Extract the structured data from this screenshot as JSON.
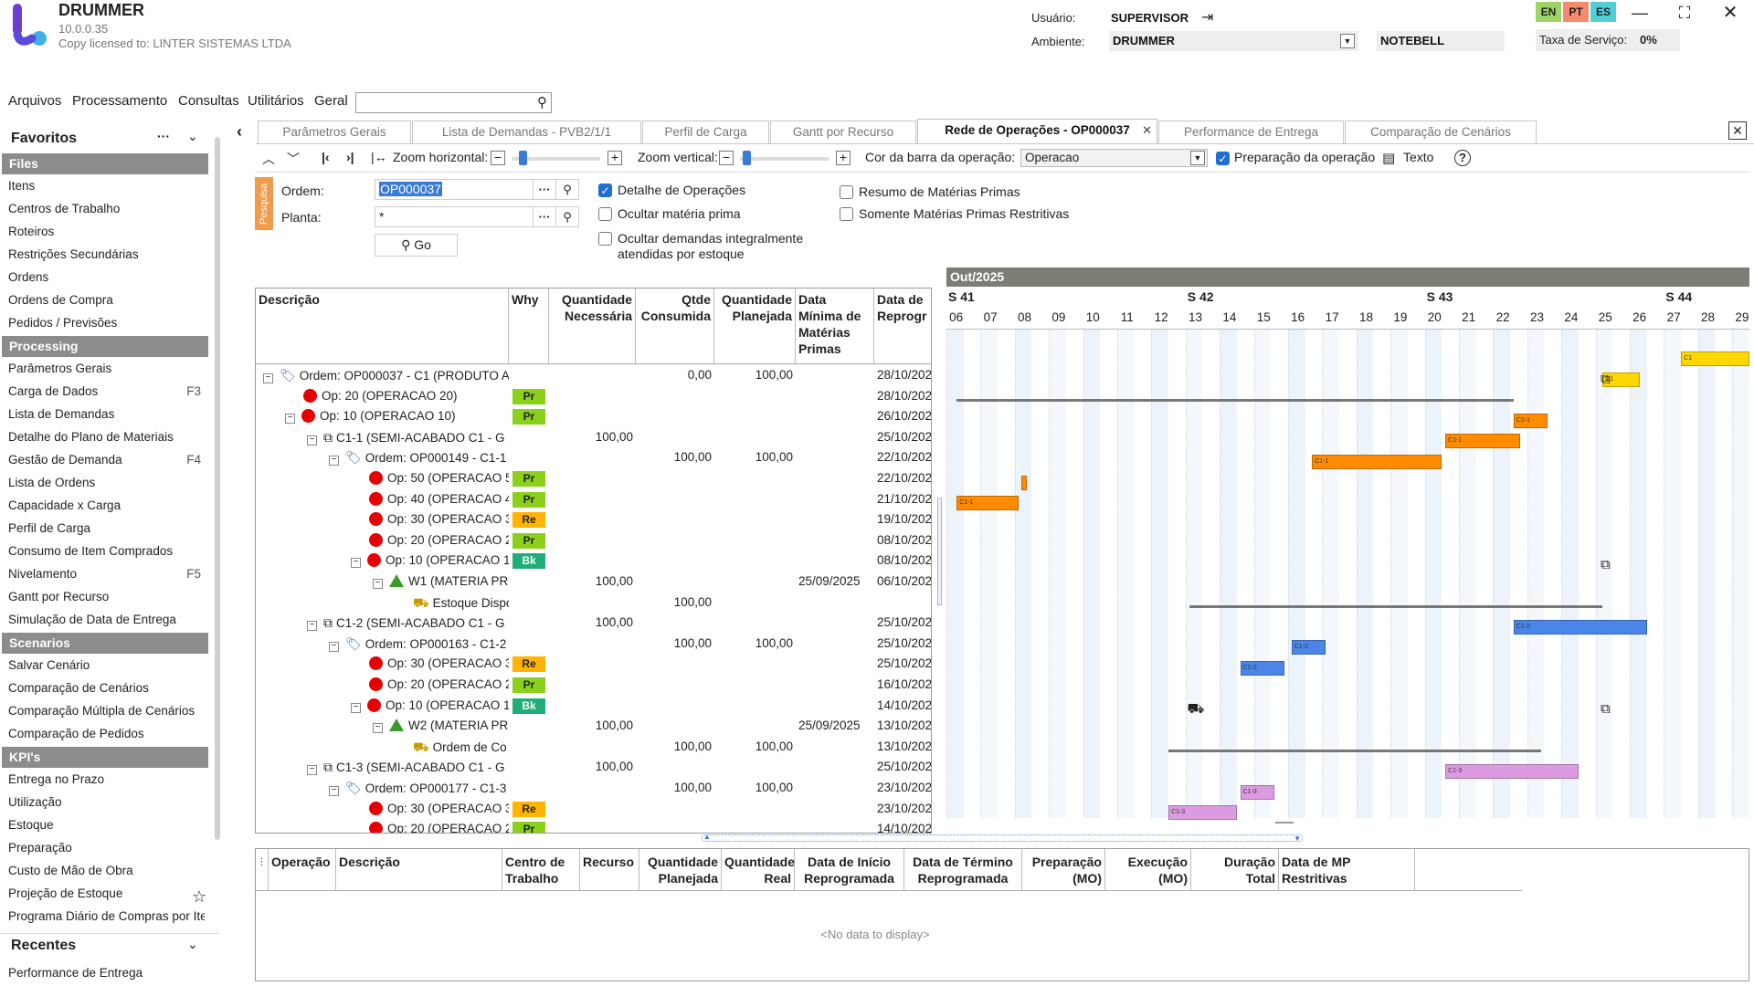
{
  "app": {
    "name": "DRUMMER",
    "version": "10.0.0.35",
    "license": "Copy licensed to: LINTER SISTEMAS LTDA"
  },
  "header": {
    "user_label": "Usuário:",
    "user_value": "SUPERVISOR",
    "env_label": "Ambiente:",
    "env_value": "DRUMMER",
    "env_secondary": "NOTEBELL",
    "service_rate_label": "Taxa de Serviço:",
    "service_rate_value": "0%",
    "languages": [
      "EN",
      "PT",
      "ES"
    ],
    "lang_colors": [
      "#9ed36a",
      "#f48a6e",
      "#4fd0d6"
    ]
  },
  "menu": [
    "Arquivos",
    "Processamento",
    "Consultas",
    "Utilitários",
    "Geral"
  ],
  "sidebar": {
    "title": "Favoritos",
    "sections": [
      {
        "title": "Files",
        "items": [
          {
            "label": "Itens"
          },
          {
            "label": "Centros de Trabalho"
          },
          {
            "label": "Roteiros"
          },
          {
            "label": "Restrições Secundárias"
          },
          {
            "label": "Ordens"
          },
          {
            "label": "Ordens de Compra"
          },
          {
            "label": "Pedidos / Previsões"
          }
        ]
      },
      {
        "title": "Processing",
        "items": [
          {
            "label": "Parâmetros Gerais"
          },
          {
            "label": "Carga de Dados",
            "key": "F3"
          },
          {
            "label": "Lista de Demandas"
          },
          {
            "label": "Detalhe do Plano de Materiais"
          },
          {
            "label": "Gestão de Demanda",
            "key": "F4"
          },
          {
            "label": "Lista de Ordens"
          },
          {
            "label": "Capacidade x Carga"
          },
          {
            "label": "Perfil de Carga"
          },
          {
            "label": "Consumo de Item Comprados"
          },
          {
            "label": "Nivelamento",
            "key": "F5"
          },
          {
            "label": "Gantt por Recurso"
          },
          {
            "label": "Simulação de Data de Entrega"
          }
        ]
      },
      {
        "title": "Scenarios",
        "items": [
          {
            "label": "Salvar Cenário"
          },
          {
            "label": "Comparação de Cenários"
          },
          {
            "label": "Comparação Múltipla de Cenários"
          },
          {
            "label": "Comparação de Pedidos"
          }
        ]
      },
      {
        "title": "KPI's",
        "items": [
          {
            "label": "Entrega no Prazo"
          },
          {
            "label": "Utilização"
          },
          {
            "label": "Estoque"
          },
          {
            "label": "Preparação"
          },
          {
            "label": "Custo de Mão de Obra"
          },
          {
            "label": "Projeção de Estoque"
          },
          {
            "label": "Programa Diário de Compras por Iter"
          }
        ]
      }
    ],
    "recent_title": "Recentes",
    "recent_items": [
      "Performance de Entrega"
    ]
  },
  "tabs": [
    {
      "label": "Parâmetros Gerais"
    },
    {
      "label": "Lista de Demandas - PVB2/1/1"
    },
    {
      "label": "Perfil de Carga"
    },
    {
      "label": "Gantt por Recurso"
    },
    {
      "label": "Rede de Operações - OP000037",
      "active": true
    },
    {
      "label": "Performance de Entrega"
    },
    {
      "label": "Comparação de Cenários"
    }
  ],
  "toolbar": {
    "zoom_h": "Zoom horizontal:",
    "zoom_v": "Zoom vertical:",
    "bar_color_label": "Cor da barra da operação:",
    "bar_color_value": "Operacao",
    "prep_label": "Preparação da operação",
    "text_label": "Texto"
  },
  "form": {
    "side_label": "Pesquisa",
    "order_label": "Ordem:",
    "order_value": "OP000037",
    "plant_label": "Planta:",
    "plant_value": "*",
    "go_label": "Go",
    "chk_detail": "Detalhe de Operações",
    "chk_hide_mp": "Ocultar matéria prima",
    "chk_hide_demands": "Ocultar demandas integralmente atendidas por estoque",
    "chk_summary": "Resumo de Matérias Primas",
    "chk_restrictive": "Somente Matérias Primas Restritivas"
  },
  "grid": {
    "headers": [
      "Descrição",
      "Why",
      "Quantidade Necessária",
      "Qtde Consumida",
      "Quantidade Planejada",
      "Data Mínima de Matérias Primas",
      "Data de Reprogr"
    ],
    "rows": [
      {
        "lvl": 0,
        "tog": "⊟",
        "ic": "order",
        "desc": "Ordem: OP000037 - C1 (PRODUTO A",
        "why": "",
        "qn": "",
        "qc": "0,00",
        "qp": "100,00",
        "dm": "",
        "dr": "28/10/202"
      },
      {
        "lvl": 1,
        "tog": "",
        "ic": "dot",
        "desc": "Op: 20 (OPERACAO 20)",
        "why": "Pr",
        "qn": "",
        "qc": "",
        "qp": "",
        "dm": "",
        "dr": "28/10/202"
      },
      {
        "lvl": 1,
        "tog": "⊟",
        "ic": "dot",
        "desc": "Op: 10 (OPERACAO 10)",
        "why": "Pr",
        "qn": "",
        "qc": "",
        "qp": "",
        "dm": "",
        "dr": "26/10/202"
      },
      {
        "lvl": 2,
        "tog": "⊟",
        "ic": "net",
        "desc": "C1-1 (SEMI-ACABADO C1 - G",
        "why": "",
        "qn": "100,00",
        "qc": "",
        "qp": "",
        "dm": "",
        "dr": "25/10/202"
      },
      {
        "lvl": 3,
        "tog": "⊟",
        "ic": "order",
        "desc": "Ordem: OP000149 - C1-1",
        "why": "",
        "qn": "",
        "qc": "100,00",
        "qp": "100,00",
        "dm": "",
        "dr": "22/10/202"
      },
      {
        "lvl": 4,
        "tog": "",
        "ic": "dot",
        "desc": "Op: 50 (OPERACAO 5",
        "why": "Pr",
        "qn": "",
        "qc": "",
        "qp": "",
        "dm": "",
        "dr": "22/10/202"
      },
      {
        "lvl": 4,
        "tog": "",
        "ic": "dot",
        "desc": "Op: 40 (OPERACAO 4",
        "why": "Pr",
        "qn": "",
        "qc": "",
        "qp": "",
        "dm": "",
        "dr": "21/10/202"
      },
      {
        "lvl": 4,
        "tog": "",
        "ic": "dot",
        "desc": "Op: 30 (OPERACAO 3",
        "why": "Re",
        "qn": "",
        "qc": "",
        "qp": "",
        "dm": "",
        "dr": "19/10/202"
      },
      {
        "lvl": 4,
        "tog": "",
        "ic": "dot",
        "desc": "Op: 20 (OPERACAO 2",
        "why": "Pr",
        "qn": "",
        "qc": "",
        "qp": "",
        "dm": "",
        "dr": "08/10/202"
      },
      {
        "lvl": 4,
        "tog": "⊟",
        "ic": "dot",
        "desc": "Op: 10 (OPERACAO 1",
        "why": "Bk",
        "qn": "",
        "qc": "",
        "qp": "",
        "dm": "",
        "dr": "08/10/202"
      },
      {
        "lvl": 5,
        "tog": "⊟",
        "ic": "tri",
        "desc": "W1 (MATERIA PR",
        "why": "",
        "qn": "100,00",
        "qc": "",
        "qp": "",
        "dm": "25/09/2025",
        "dr": "06/10/202"
      },
      {
        "lvl": 6,
        "tog": "",
        "ic": "truck",
        "desc": "Estoque Dispo",
        "why": "",
        "qn": "",
        "qc": "100,00",
        "qp": "",
        "dm": "",
        "dr": ""
      },
      {
        "lvl": 2,
        "tog": "⊟",
        "ic": "net",
        "desc": "C1-2 (SEMI-ACABADO C1 - G",
        "why": "",
        "qn": "100,00",
        "qc": "",
        "qp": "",
        "dm": "",
        "dr": "25/10/202"
      },
      {
        "lvl": 3,
        "tog": "⊟",
        "ic": "order",
        "desc": "Ordem: OP000163 - C1-2",
        "why": "",
        "qn": "",
        "qc": "100,00",
        "qp": "100,00",
        "dm": "",
        "dr": "25/10/202"
      },
      {
        "lvl": 4,
        "tog": "",
        "ic": "dot",
        "desc": "Op: 30 (OPERACAO 3",
        "why": "Re",
        "qn": "",
        "qc": "",
        "qp": "",
        "dm": "",
        "dr": "25/10/202"
      },
      {
        "lvl": 4,
        "tog": "",
        "ic": "dot",
        "desc": "Op: 20 (OPERACAO 2",
        "why": "Pr",
        "qn": "",
        "qc": "",
        "qp": "",
        "dm": "",
        "dr": "16/10/202"
      },
      {
        "lvl": 4,
        "tog": "⊟",
        "ic": "dot",
        "desc": "Op: 10 (OPERACAO 1",
        "why": "Bk",
        "qn": "",
        "qc": "",
        "qp": "",
        "dm": "",
        "dr": "14/10/202"
      },
      {
        "lvl": 5,
        "tog": "⊟",
        "ic": "tri",
        "desc": "W2 (MATERIA PR",
        "why": "",
        "qn": "100,00",
        "qc": "",
        "qp": "",
        "dm": "25/09/2025",
        "dr": "13/10/202"
      },
      {
        "lvl": 6,
        "tog": "",
        "ic": "truck",
        "desc": "Ordem de Co",
        "why": "",
        "qn": "",
        "qc": "100,00",
        "qp": "100,00",
        "dm": "",
        "dr": "13/10/202"
      },
      {
        "lvl": 2,
        "tog": "⊟",
        "ic": "net",
        "desc": "C1-3 (SEMI-ACABADO C1 - G",
        "why": "",
        "qn": "100,00",
        "qc": "",
        "qp": "",
        "dm": "",
        "dr": "25/10/202"
      },
      {
        "lvl": 3,
        "tog": "⊟",
        "ic": "order",
        "desc": "Ordem: OP000177 - C1-3",
        "why": "",
        "qn": "",
        "qc": "100,00",
        "qp": "100,00",
        "dm": "",
        "dr": "23/10/202"
      },
      {
        "lvl": 4,
        "tog": "",
        "ic": "dot",
        "desc": "Op: 30 (OPERACAO 3",
        "why": "Re",
        "qn": "",
        "qc": "",
        "qp": "",
        "dm": "",
        "dr": "23/10/202"
      },
      {
        "lvl": 4,
        "tog": "",
        "ic": "dot",
        "desc": "Op: 20 (OPERACAO 2",
        "why": "Pr",
        "qn": "",
        "qc": "",
        "qp": "",
        "dm": "",
        "dr": "14/10/202"
      }
    ],
    "why_colors": {
      "Pr": "#8bd11c",
      "Re": "#ffb400",
      "Bk": "#1fae7a"
    }
  },
  "gantt": {
    "month": "Out/2025",
    "weeks": [
      {
        "label": "S 41",
        "day": 6
      },
      {
        "label": "S 42",
        "day": 13
      },
      {
        "label": "S 43",
        "day": 20
      },
      {
        "label": "S 44",
        "day": 27
      }
    ],
    "days": [
      "06",
      "07",
      "08",
      "09",
      "10",
      "11",
      "12",
      "13",
      "14",
      "15",
      "16",
      "17",
      "18",
      "19",
      "20",
      "21",
      "22",
      "23",
      "24",
      "25",
      "26",
      "27",
      "28",
      "29"
    ],
    "bars": [
      {
        "row": 0,
        "start": 27.5,
        "end": 29.5,
        "color": "#ffd700",
        "label": "C1"
      },
      {
        "row": 1,
        "start": 25.2,
        "end": 26.3,
        "color": "#ffd700",
        "label": "C1"
      },
      {
        "row": 3,
        "start": 22.6,
        "end": 23.6,
        "color": "#ff8c00",
        "label": "C1-1"
      },
      {
        "row": 4,
        "start": 20.6,
        "end": 22.8,
        "color": "#ff8c00",
        "label": "C1-1"
      },
      {
        "row": 5,
        "start": 16.7,
        "end": 20.5,
        "color": "#ff8c00",
        "label": "C1-1"
      },
      {
        "row": 6,
        "start": 8.2,
        "end": 8.35,
        "color": "#ff8c00",
        "label": ""
      },
      {
        "row": 7,
        "start": 6.3,
        "end": 8.1,
        "color": "#ff8c00",
        "label": "C1-1"
      },
      {
        "row": 13,
        "start": 22.6,
        "end": 26.5,
        "color": "#4a86e8",
        "label": "C1-2"
      },
      {
        "row": 14,
        "start": 16.1,
        "end": 17.1,
        "color": "#4a86e8",
        "label": "C1-2"
      },
      {
        "row": 15,
        "start": 14.6,
        "end": 15.9,
        "color": "#4a86e8",
        "label": "C1-2"
      },
      {
        "row": 20,
        "start": 20.6,
        "end": 24.5,
        "color": "#dc9be0",
        "label": "C1-3"
      },
      {
        "row": 21,
        "start": 14.6,
        "end": 15.6,
        "color": "#dc9be0",
        "label": "C1-3"
      },
      {
        "row": 22,
        "start": 12.5,
        "end": 14.5,
        "color": "#dc9be0",
        "label": "C1-3"
      }
    ],
    "summaries": [
      {
        "row": 2,
        "start": 6.3,
        "end": 22.6
      },
      {
        "row": 12,
        "start": 13.1,
        "end": 25.2
      },
      {
        "row": 19,
        "start": 12.5,
        "end": 23.4
      }
    ],
    "icons": [
      {
        "row": 1,
        "day": 25.1,
        "icon": "network-icon",
        "glyph": "⧉"
      },
      {
        "row": 10,
        "day": 25.1,
        "icon": "network-icon",
        "glyph": "⧉"
      },
      {
        "row": 17,
        "day": 13.1,
        "icon": "truck-icon",
        "glyph": "⛟"
      },
      {
        "row": 17,
        "day": 25.1,
        "icon": "network-icon",
        "glyph": "⧉"
      }
    ]
  },
  "bottom": {
    "headers": [
      "Operação",
      "Descrição",
      "Centro de Trabalho",
      "Recurso",
      "Quantidade Planejada",
      "Quantidade Real",
      "Data de Início Reprogramada",
      "Data de Término Reprogramada",
      "Preparação (MO)",
      "Execução (MO)",
      "Duração Total",
      "Data de MP Restritivas"
    ],
    "empty_text": "<No data to display>"
  }
}
